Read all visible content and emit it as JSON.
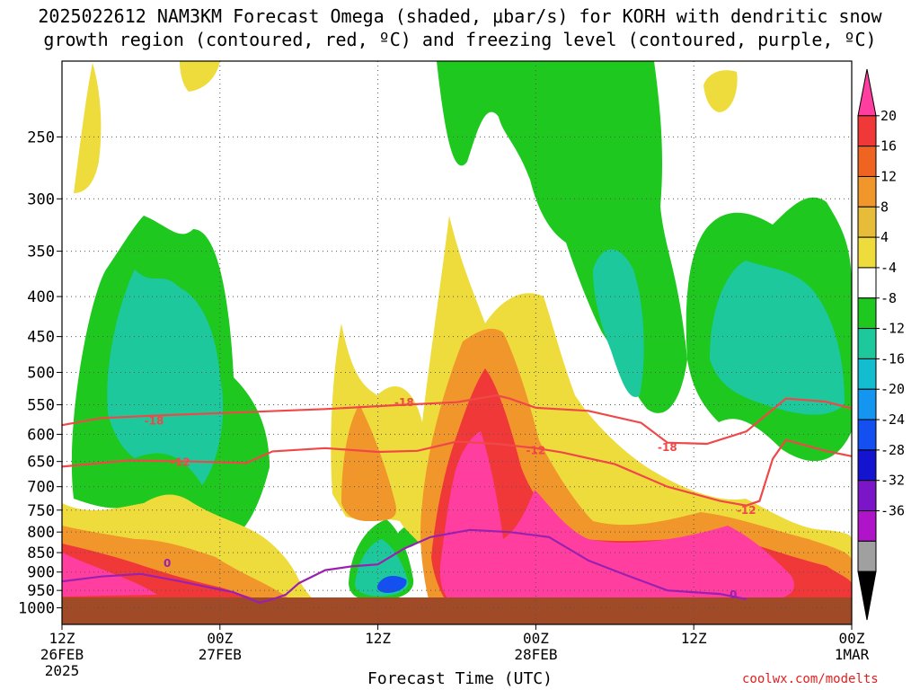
{
  "title_line1": "2025022612 NAM3KM Forecast Omega (shaded, μbar/s) for KORH with dendritic snow",
  "title_line2": "growth region (contoured, red, ºC) and freezing level (contoured, purple, ºC)",
  "credit": "coolwx.com/modelts",
  "chart_data": {
    "type": "heatmap",
    "xlabel": "Forecast Time (UTC)",
    "x_ticks": [
      {
        "hours": 0,
        "lines": [
          "12Z",
          "26FEB",
          "2025"
        ]
      },
      {
        "hours": 12,
        "lines": [
          "00Z",
          "27FEB"
        ]
      },
      {
        "hours": 24,
        "lines": [
          "12Z"
        ]
      },
      {
        "hours": 36,
        "lines": [
          "00Z",
          "28FEB"
        ]
      },
      {
        "hours": 48,
        "lines": [
          "12Z"
        ]
      },
      {
        "hours": 60,
        "lines": [
          "00Z",
          "1MAR"
        ]
      }
    ],
    "x_range_hours": [
      0,
      60
    ],
    "y_scale": "log",
    "y_range": [
      1050,
      200
    ],
    "y_ticks": [
      250,
      300,
      350,
      400,
      450,
      500,
      550,
      600,
      650,
      700,
      750,
      800,
      850,
      900,
      950,
      1000
    ],
    "grid": true,
    "colorbar": {
      "labels": [
        20,
        16,
        12,
        8,
        4,
        -4,
        -8,
        -12,
        -16,
        -20,
        -24,
        -28,
        -32,
        -36
      ],
      "colors": [
        "#ff3ea0",
        "#f03838",
        "#f06422",
        "#f0962a",
        "#e6bc38",
        "#eedc3c",
        "#ffffff",
        "#1ec81e",
        "#1cc89c",
        "#14bcd0",
        "#1496f0",
        "#1450f0",
        "#1414d0",
        "#7a16c8",
        "#b014c8",
        "#a0a0a0",
        "#000000"
      ]
    },
    "terrain_color": "#a04a28",
    "dendritic_isotherms": [
      {
        "label": "-18",
        "color": "#f04848",
        "points": [
          [
            0,
            584
          ],
          [
            3,
            572
          ],
          [
            8,
            567
          ],
          [
            14,
            562
          ],
          [
            20,
            557
          ],
          [
            26,
            550
          ],
          [
            30,
            546
          ],
          [
            33,
            535
          ],
          [
            34,
            540
          ],
          [
            36,
            555
          ],
          [
            40,
            560
          ],
          [
            44,
            580
          ],
          [
            46,
            615
          ],
          [
            49,
            617
          ],
          [
            52,
            595
          ],
          [
            55,
            540
          ],
          [
            58,
            545
          ],
          [
            60,
            556
          ]
        ],
        "label_points": [
          [
            7,
            575
          ],
          [
            26,
            545
          ],
          [
            46,
            622
          ]
        ]
      },
      {
        "label": "-12",
        "color": "#f04848",
        "points": [
          [
            0,
            660
          ],
          [
            5,
            648
          ],
          [
            10,
            650
          ],
          [
            14,
            653
          ],
          [
            16,
            631
          ],
          [
            20,
            625
          ],
          [
            24,
            632
          ],
          [
            27,
            630
          ],
          [
            30,
            613
          ],
          [
            33,
            617
          ],
          [
            36,
            625
          ],
          [
            38,
            633
          ],
          [
            42,
            655
          ],
          [
            46,
            700
          ],
          [
            50,
            730
          ],
          [
            52,
            740
          ],
          [
            53,
            730
          ],
          [
            54,
            645
          ],
          [
            55,
            610
          ],
          [
            58,
            630
          ],
          [
            60,
            640
          ]
        ],
        "label_points": [
          [
            9,
            650
          ],
          [
            36,
            628
          ],
          [
            52,
            748
          ]
        ]
      }
    ],
    "freezing_level": {
      "label": "0",
      "color": "#9a20b0",
      "points": [
        [
          0,
          925
        ],
        [
          3,
          912
        ],
        [
          6,
          905
        ],
        [
          9,
          925
        ],
        [
          11,
          940
        ],
        [
          13,
          955
        ],
        [
          15,
          985
        ],
        [
          16,
          975
        ],
        [
          17,
          962
        ],
        [
          18,
          930
        ],
        [
          20,
          895
        ],
        [
          22,
          885
        ],
        [
          24,
          880
        ],
        [
          26,
          840
        ],
        [
          28,
          812
        ],
        [
          31,
          795
        ],
        [
          34,
          800
        ],
        [
          37,
          812
        ],
        [
          40,
          870
        ],
        [
          43,
          910
        ],
        [
          46,
          950
        ],
        [
          50,
          960
        ],
        [
          52,
          975
        ]
      ],
      "label_points": [
        [
          8,
          875
        ],
        [
          51,
          960
        ]
      ]
    }
  }
}
